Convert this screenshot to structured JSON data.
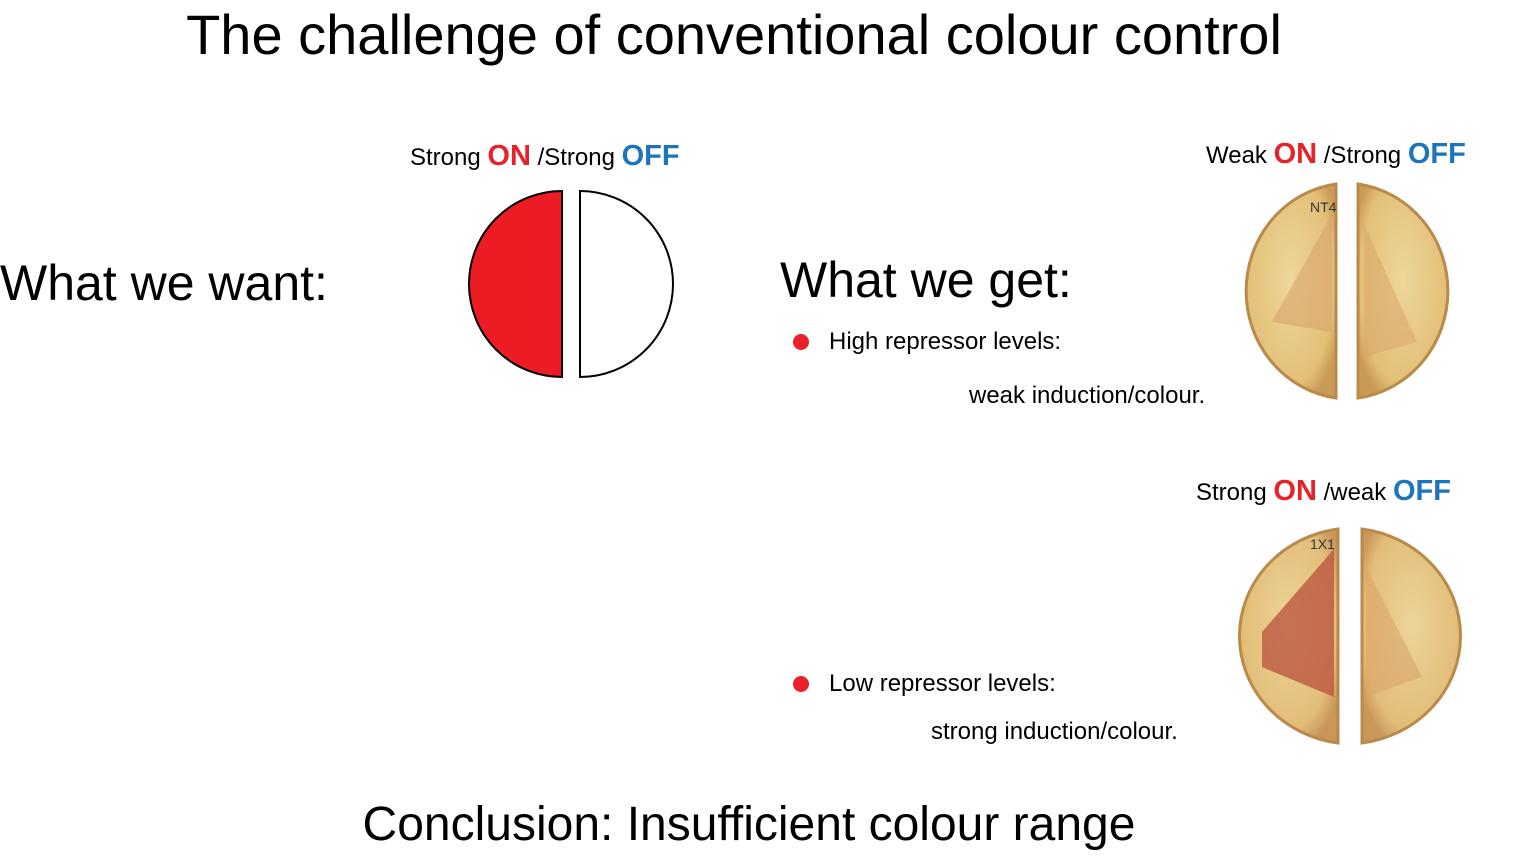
{
  "title": "The challenge of conventional colour control",
  "want": {
    "heading": "What we want:",
    "label": {
      "strong1": "Strong",
      "on": "ON",
      "slash": "/Strong",
      "off": "OFF"
    }
  },
  "get": {
    "heading": "What we get:",
    "plate1": {
      "label": {
        "pre": "Weak",
        "on": "ON",
        "slash": "/Strong",
        "off": "OFF"
      },
      "handwriting": "NT4",
      "bullet": "High repressor levels:",
      "sub": "weak induction/colour."
    },
    "plate2": {
      "label": {
        "pre": "Strong",
        "on": "ON",
        "slash": "/weak",
        "off": "OFF"
      },
      "handwriting": "1X1",
      "bullet": "Low repressor levels:",
      "sub": "strong induction/colour."
    }
  },
  "conclusion": "Conclusion: Insufficient colour range",
  "colors": {
    "on": "#e8212b",
    "off": "#1c75bc"
  }
}
